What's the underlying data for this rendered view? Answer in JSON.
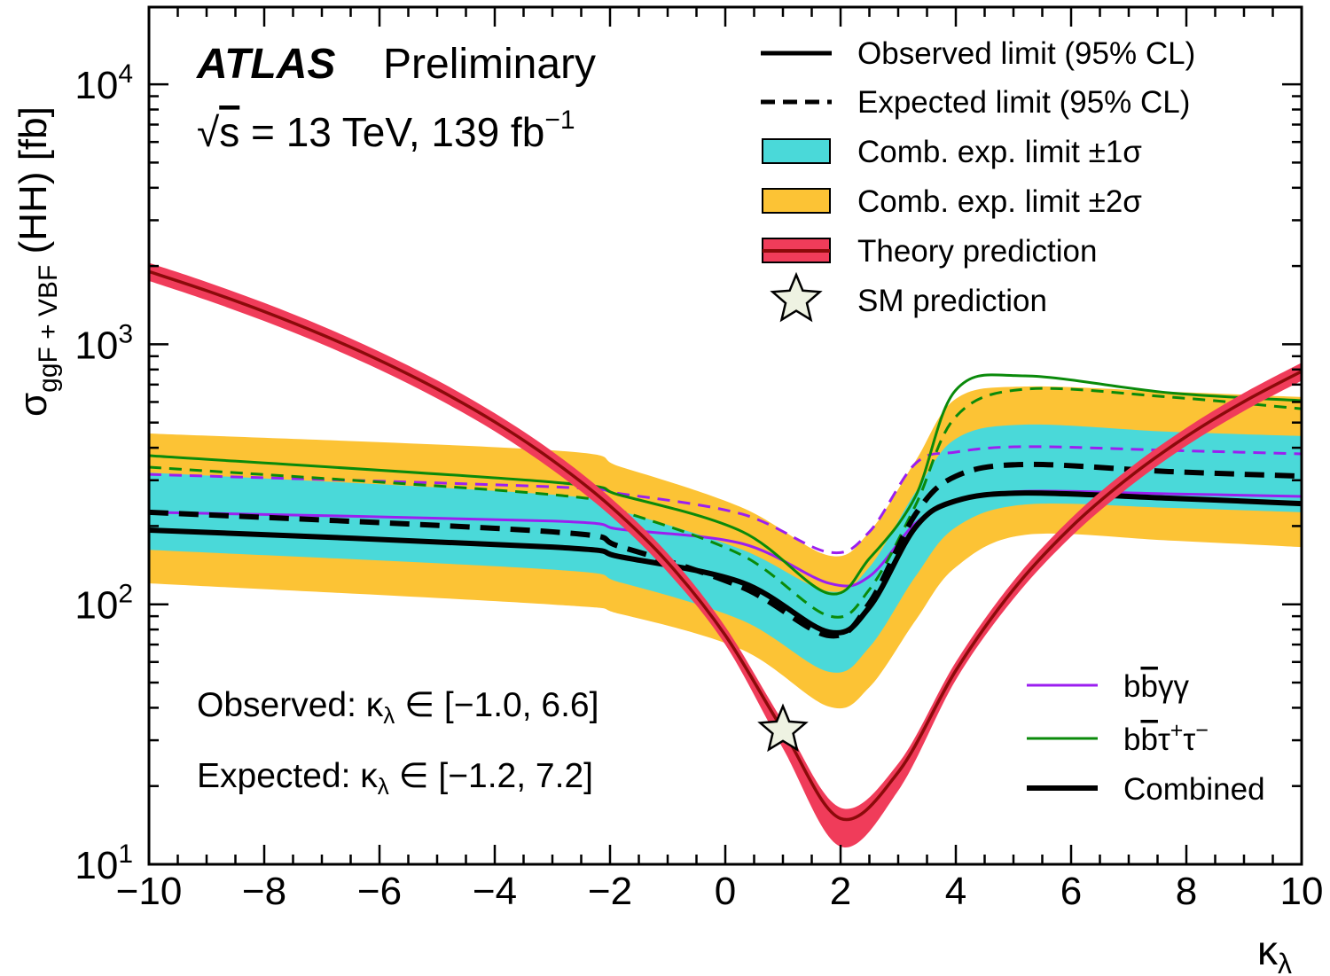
{
  "chart_data": {
    "type": "line",
    "experiment": "ATLAS",
    "status": "Preliminary",
    "energy_label": {
      "sqrt": "√",
      "s": "s",
      "eq": " = ",
      "text": "13 TeV, 139 fb",
      "sup": "−1"
    },
    "xlabel": {
      "main": "κ",
      "sub": "λ"
    },
    "ylabel": {
      "main": "σ",
      "sub": "ggF + VBF",
      "rest": " (HH) [fb]"
    },
    "xlim": [
      -10,
      10
    ],
    "ylim": [
      10,
      20000
    ],
    "yscale": "log",
    "x_ticks": [
      -10,
      -8,
      -6,
      -4,
      -2,
      0,
      2,
      4,
      6,
      8,
      10
    ],
    "x_tick_labels": [
      "−10",
      "−8",
      "−6",
      "−4",
      "−2",
      "0",
      "2",
      "4",
      "6",
      "8",
      "10"
    ],
    "y_ticks": [
      10,
      100,
      1000,
      10000
    ],
    "y_tick_labels": [
      {
        "base": "10",
        "exp": "1"
      },
      {
        "base": "10",
        "exp": "2"
      },
      {
        "base": "10",
        "exp": "3"
      },
      {
        "base": "10",
        "exp": "4"
      }
    ],
    "grid": false,
    "legend_placement": "top-right",
    "colors": {
      "band_2sigma": "#fcc335",
      "band_1sigma": "#4ad9d9",
      "theory_band": "#f03c5a",
      "theory_line": "#8b0a0a",
      "bbyy": "#9b1ff0",
      "bbtautau": "#0a8a0a",
      "combined": "#000000",
      "star_fill": "#eef2e2"
    },
    "kappa": [
      -10,
      -3,
      -1.8,
      0.3,
      1.8,
      2.5,
      3.3,
      4,
      5.2,
      7.7,
      10
    ],
    "series": [
      {
        "name": "Observed limit (95% CL)",
        "channel": "Combined",
        "style": "solid",
        "values": [
          193,
          166,
          152,
          121,
          78.2,
          97.5,
          198,
          250,
          268,
          256,
          244
        ]
      },
      {
        "name": "Expected limit (95% CL)",
        "channel": "Combined",
        "style": "dashed",
        "values": [
          226,
          190,
          166,
          116,
          75.8,
          101,
          222,
          311,
          345,
          324,
          311
        ]
      },
      {
        "channel": "bb̄γγ",
        "style": "solid",
        "values": [
          226,
          209,
          194,
          171,
          120.5,
          128,
          205,
          250,
          272,
          266,
          260
        ]
      },
      {
        "channel": "bb̄γγ",
        "style": "dashed",
        "values": [
          316,
          283,
          266,
          222,
          158.6,
          190,
          348,
          385,
          404,
          391,
          379
        ]
      },
      {
        "channel": "bb̄τ⁺τ⁻",
        "style": "solid",
        "values": [
          373,
          295,
          262,
          190,
          110,
          150,
          260,
          667,
          756,
          651,
          607
        ]
      },
      {
        "channel": "bb̄τ⁺τ⁻",
        "style": "dashed",
        "values": [
          337,
          264,
          228,
          154,
          90.2,
          114,
          240,
          527,
          672,
          627,
          565
        ]
      }
    ],
    "band_1sigma": {
      "lower": [
        162,
        136,
        121,
        86.6,
        55,
        68.4,
        128,
        198,
        242,
        235,
        226
      ],
      "upper": [
        321,
        264,
        228,
        162,
        112,
        139,
        270,
        433,
        491,
        461,
        444
      ]
    },
    "band_2sigma": {
      "lower": [
        120.5,
        99.8,
        91.5,
        66.8,
        40.4,
        48,
        86.6,
        139,
        185,
        176,
        166
      ],
      "upper": [
        454,
        391,
        337,
        235,
        154,
        190,
        356,
        617,
        688,
        657,
        627
      ]
    },
    "theory": {
      "kappa": [
        -10,
        -9,
        -8,
        -7,
        -6,
        -5,
        -4,
        -3,
        -2,
        -1,
        0,
        1,
        2,
        3,
        4,
        5,
        6,
        7,
        8,
        9,
        10
      ],
      "values": [
        1905,
        1608,
        1336,
        1089,
        868,
        673,
        503,
        358,
        239,
        145,
        76,
        32.8,
        15,
        22.6,
        55.6,
        114,
        198,
        307,
        442,
        602,
        787
      ],
      "upper": [
        2057,
        1737,
        1443,
        1176,
        937,
        727,
        543,
        387,
        258,
        157,
        82,
        35.4,
        16.5,
        24.4,
        60,
        123,
        214,
        332,
        477,
        650,
        850
      ],
      "lower": [
        1753,
        1479,
        1229,
        1002,
        799,
        619,
        463,
        329,
        220,
        133,
        70,
        27.9,
        11.7,
        19.2,
        51.2,
        105,
        182,
        282,
        407,
        554,
        724
      ]
    },
    "sm_point": {
      "kappa": 1,
      "value": 32.8
    },
    "legend": [
      "Observed limit (95% CL)",
      "Expected limit (95% CL)",
      "Comb. exp. limit ±1σ",
      "Comb. exp. limit ±2σ",
      "Theory prediction",
      "SM prediction"
    ],
    "channel_legend": [
      {
        "pre": "bb",
        "bar": "b",
        "post": "γγ"
      },
      {
        "pre": "b",
        "bar": "b",
        "post": "τ",
        "sup1": "+",
        "mid": "τ",
        "sup2": "−"
      },
      {
        "pre": "Combined"
      }
    ],
    "annotations": {
      "observed": {
        "label": "Observed: ",
        "k": "κ",
        "sub": "λ",
        "rest": " ∈ [−1.0, 6.6]"
      },
      "expected": {
        "label": "Expected: ",
        "k": "κ",
        "sub": "λ",
        "rest": " ∈ [−1.2, 7.2]"
      }
    }
  }
}
